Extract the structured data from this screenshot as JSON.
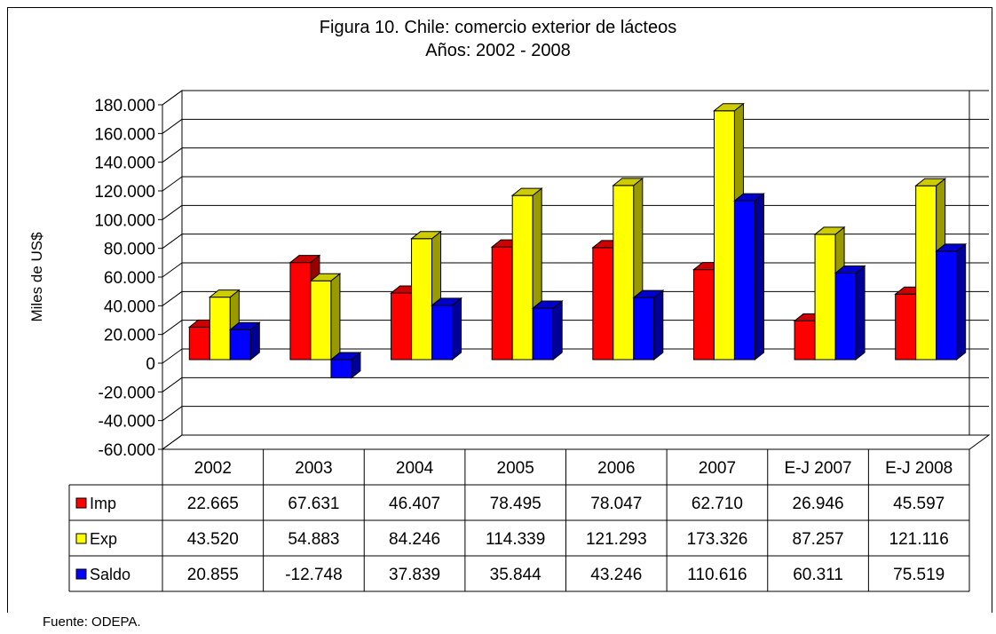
{
  "chart_data": {
    "type": "bar",
    "title": "Figura 10. Chile: comercio exterior de lácteos",
    "subtitle": "Años: 2002 - 2008",
    "ylabel": "Miles de US$",
    "xlabel": "",
    "ylim": [
      -60000,
      180000
    ],
    "yticks": [
      "180.000",
      "160.000",
      "140.000",
      "120.000",
      "100.000",
      "80.000",
      "60.000",
      "40.000",
      "20.000",
      "0",
      "-20.000",
      "-40.000",
      "-60.000"
    ],
    "categories": [
      "2002",
      "2003",
      "2004",
      "2005",
      "2006",
      "2007",
      "E-J 2007",
      "E-J 2008"
    ],
    "series": [
      {
        "name": "Imp",
        "color": "#ff0000",
        "values": [
          22665,
          67631,
          46407,
          78495,
          78047,
          62710,
          26946,
          45597
        ],
        "labels": [
          "22.665",
          "67.631",
          "46.407",
          "78.495",
          "78.047",
          "62.710",
          "26.946",
          "45.597"
        ]
      },
      {
        "name": "Exp",
        "color": "#ffff00",
        "values": [
          43520,
          54883,
          84246,
          114339,
          121293,
          173326,
          87257,
          121116
        ],
        "labels": [
          "43.520",
          "54.883",
          "84.246",
          "114.339",
          "121.293",
          "173.326",
          "87.257",
          "121.116"
        ]
      },
      {
        "name": "Saldo",
        "color": "#0000ff",
        "values": [
          20855,
          -12748,
          37839,
          35844,
          43246,
          110616,
          60311,
          75519
        ],
        "labels": [
          "20.855",
          "-12.748",
          "37.839",
          "35.844",
          "43.246",
          "110.616",
          "60.311",
          "75.519"
        ]
      }
    ],
    "grid": true,
    "legend": "data-table"
  },
  "source": "Fuente: ODEPA."
}
